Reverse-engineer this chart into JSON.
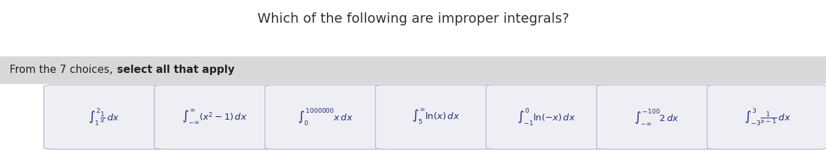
{
  "title": "Which of the following are improper integrals?",
  "title_fontsize": 14,
  "title_color": "#333333",
  "instruction_normal": "From the 7 choices, ",
  "instruction_bold": "select all that apply",
  "instruction_fontsize": 11,
  "background_color": "#ffffff",
  "banner_color": "#d8d8d8",
  "card_facecolor": "#eeeef5",
  "card_edgecolor": "#b8b8d0",
  "math_color": "#2a2a7a",
  "integrals": [
    "$\\int_{1}^{2} \\frac{1}{x}\\, dx$",
    "$\\int_{-\\infty}^{\\infty} (x^2 - 1)\\, dx$",
    "$\\int_{0}^{1000000} x\\, dx$",
    "$\\int_{5}^{\\infty} \\ln(x)\\, dx$",
    "$\\int_{-1}^{0} \\ln(-x)\\, dx$",
    "$\\int_{-\\infty}^{-100} 2\\, dx$",
    "$\\int_{-3}^{3} \\frac{1}{x-1}\\, dx$"
  ],
  "n_cards": 7,
  "fig_width": 12.0,
  "fig_height": 2.21,
  "dpi": 100
}
